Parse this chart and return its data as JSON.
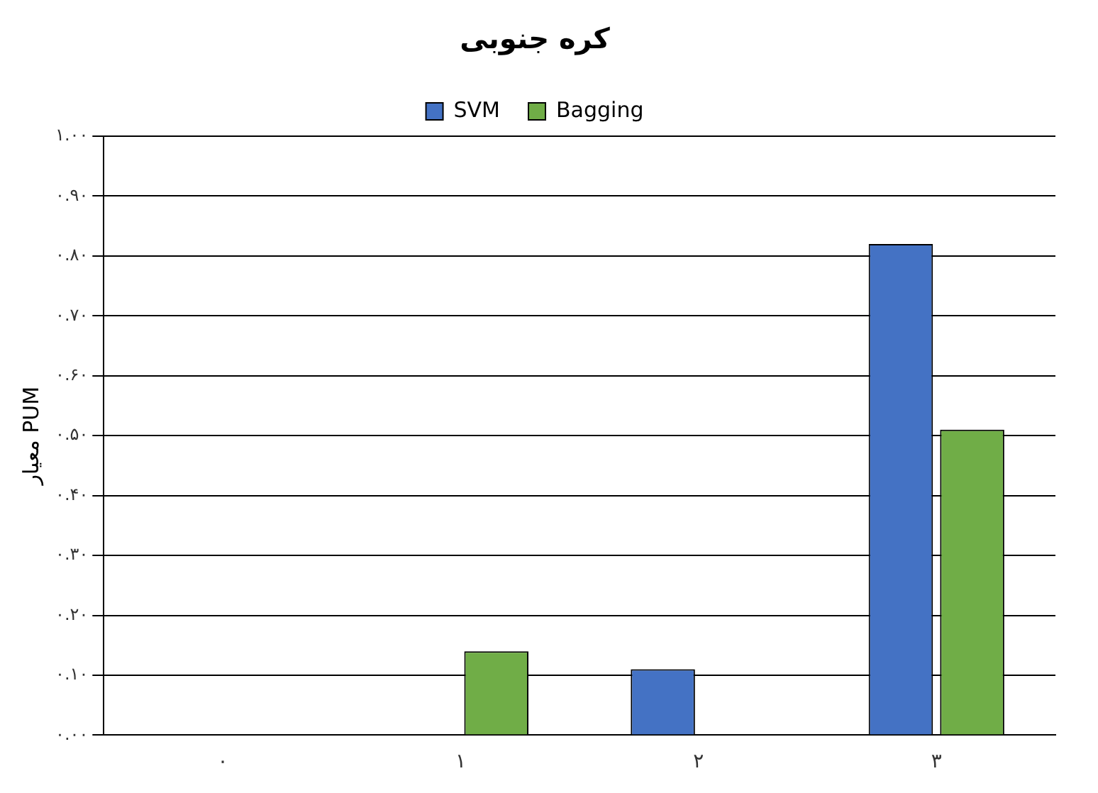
{
  "chart_data": {
    "type": "bar",
    "title": "کره جنوبی",
    "ylabel": "معیار PUM",
    "categories": [
      "۰",
      "۱",
      "۲",
      "۳"
    ],
    "series": [
      {
        "name": "SVM",
        "color": "#4472c4",
        "values": [
          0,
          0,
          0.11,
          0.82
        ]
      },
      {
        "name": "Bagging",
        "color": "#70ad47",
        "values": [
          0,
          0.14,
          0,
          0.51
        ]
      }
    ],
    "ylim": [
      0,
      1
    ],
    "yticks": [
      {
        "value": 0,
        "label": "۰.۰۰"
      },
      {
        "value": 0.1,
        "label": "۰.۱۰"
      },
      {
        "value": 0.2,
        "label": "۰.۲۰"
      },
      {
        "value": 0.3,
        "label": "۰.۳۰"
      },
      {
        "value": 0.4,
        "label": "۰.۴۰"
      },
      {
        "value": 0.5,
        "label": "۰.۵۰"
      },
      {
        "value": 0.6,
        "label": "۰.۶۰"
      },
      {
        "value": 0.7,
        "label": "۰.۷۰"
      },
      {
        "value": 0.8,
        "label": "۰.۸۰"
      },
      {
        "value": 0.9,
        "label": "۰.۹۰"
      },
      {
        "value": 1,
        "label": "۱.۰۰"
      }
    ],
    "grid": "y",
    "legend": "top"
  }
}
